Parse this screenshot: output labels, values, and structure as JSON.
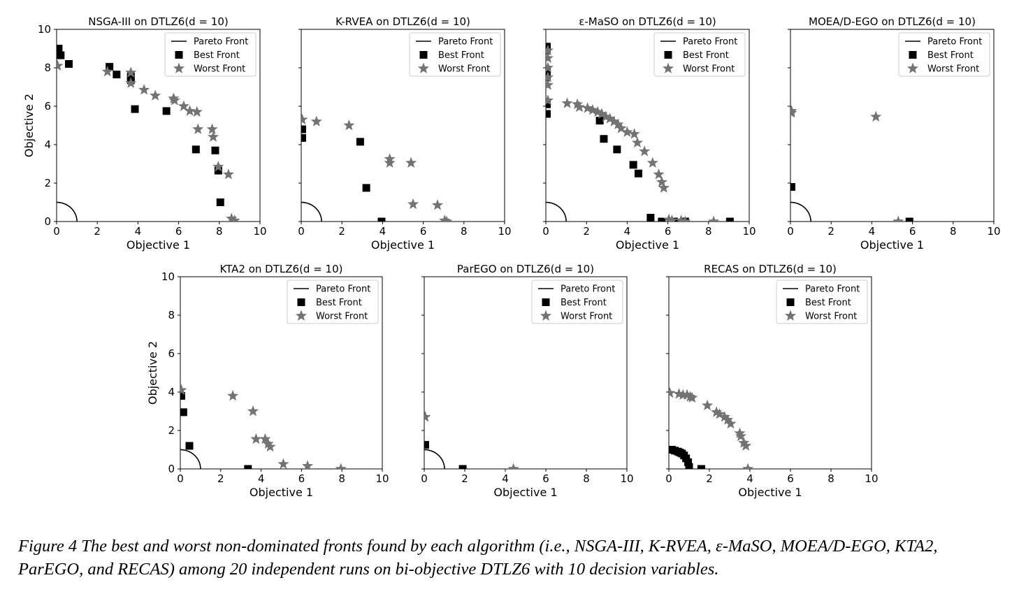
{
  "legend": {
    "pareto": "Pareto Front",
    "best": "Best Front",
    "worst": "Worst Front"
  },
  "colors": {
    "best": "#000000",
    "worst": "#737373",
    "pareto": "#000000"
  },
  "caption": "Figure 4 The best and worst non-dominated fronts found by each algorithm (i.e., NSGA-III, K-RVEA, ε-MaSO, MOEA/D-EGO, KTA2, ParEGO, and RECAS) among 20 independent runs on bi-objective DTLZ6 with 10 decision variables.",
  "chart_data": [
    {
      "type": "scatter",
      "title": "NSGA-III on DTLZ6(d = 10)",
      "xlabel": "Objective 1",
      "ylabel": "Objective 2",
      "xlim": [
        0,
        10
      ],
      "ylim": [
        0,
        10
      ],
      "xticks": [
        "0",
        "2",
        "4",
        "6",
        "8",
        "10"
      ],
      "yticks": [
        "0",
        "2",
        "4",
        "6",
        "8",
        "10"
      ],
      "legend_position": "upper right",
      "pareto_front": "quarter circle of radius 1 centered at origin",
      "series": [
        {
          "name": "Best Front",
          "marker": "square",
          "points": [
            [
              0.1,
              9.0
            ],
            [
              0.2,
              8.65
            ],
            [
              0.6,
              8.2
            ],
            [
              2.6,
              8.05
            ],
            [
              2.95,
              7.65
            ],
            [
              3.65,
              7.55
            ],
            [
              3.65,
              7.35
            ],
            [
              3.85,
              5.85
            ],
            [
              5.4,
              5.75
            ],
            [
              6.85,
              3.75
            ],
            [
              7.8,
              3.7
            ],
            [
              7.95,
              2.65
            ],
            [
              8.05,
              1.0
            ]
          ]
        },
        {
          "name": "Worst Front",
          "marker": "star",
          "points": [
            [
              0.05,
              8.1
            ],
            [
              2.5,
              7.8
            ],
            [
              3.65,
              7.75
            ],
            [
              3.65,
              7.2
            ],
            [
              4.3,
              6.85
            ],
            [
              4.85,
              6.55
            ],
            [
              5.75,
              6.4
            ],
            [
              5.8,
              6.3
            ],
            [
              6.25,
              6.0
            ],
            [
              6.55,
              5.75
            ],
            [
              6.9,
              5.7
            ],
            [
              6.95,
              4.8
            ],
            [
              7.65,
              4.8
            ],
            [
              7.7,
              4.4
            ],
            [
              7.95,
              2.85
            ],
            [
              8.45,
              2.45
            ],
            [
              8.6,
              0.15
            ],
            [
              8.75,
              0.05
            ]
          ]
        }
      ]
    },
    {
      "type": "scatter",
      "title": "K-RVEA on DTLZ6(d = 10)",
      "xlabel": "Objective 1",
      "ylabel": "",
      "xlim": [
        0,
        10
      ],
      "ylim": [
        0,
        10
      ],
      "xticks": [
        "0",
        "2",
        "4",
        "6",
        "8",
        "10"
      ],
      "yticks": [],
      "legend_position": "upper right",
      "pareto_front": "quarter circle of radius 1 centered at origin",
      "series": [
        {
          "name": "Best Front",
          "marker": "square",
          "points": [
            [
              0.05,
              4.8
            ],
            [
              0.05,
              4.35
            ],
            [
              2.9,
              4.15
            ],
            [
              3.2,
              1.75
            ],
            [
              3.95,
              0.0
            ]
          ]
        },
        {
          "name": "Worst Front",
          "marker": "star",
          "points": [
            [
              0.05,
              5.3
            ],
            [
              0.75,
              5.2
            ],
            [
              2.35,
              5.0
            ],
            [
              4.35,
              3.25
            ],
            [
              4.35,
              3.05
            ],
            [
              5.4,
              3.05
            ],
            [
              5.5,
              0.9
            ],
            [
              6.7,
              0.85
            ],
            [
              7.05,
              0.05
            ],
            [
              7.15,
              0.0
            ]
          ]
        }
      ]
    },
    {
      "type": "scatter",
      "title": "ε-MaSO on DTLZ6(d = 10)",
      "xlabel": "Objective 1",
      "ylabel": "",
      "xlim": [
        0,
        10
      ],
      "ylim": [
        0,
        10
      ],
      "xticks": [
        "0",
        "2",
        "4",
        "6",
        "8",
        "10"
      ],
      "yticks": [],
      "legend_position": "upper right",
      "pareto_front": "quarter circle of radius 1 centered at origin",
      "series": [
        {
          "name": "Best Front",
          "marker": "square",
          "points": [
            [
              0.05,
              9.1
            ],
            [
              0.05,
              8.9
            ],
            [
              0.05,
              7.9
            ],
            [
              0.05,
              7.5
            ],
            [
              0.05,
              6.1
            ],
            [
              0.05,
              5.6
            ],
            [
              2.65,
              5.25
            ],
            [
              2.85,
              4.3
            ],
            [
              3.5,
              3.75
            ],
            [
              4.3,
              2.95
            ],
            [
              4.55,
              2.5
            ],
            [
              5.15,
              0.2
            ],
            [
              5.7,
              0.0
            ],
            [
              6.3,
              0.0
            ],
            [
              6.85,
              0.0
            ],
            [
              9.05,
              0.0
            ]
          ]
        },
        {
          "name": "Worst Front",
          "marker": "star",
          "points": [
            [
              0.1,
              8.9
            ],
            [
              0.1,
              8.5
            ],
            [
              0.1,
              8.0
            ],
            [
              0.1,
              7.5
            ],
            [
              0.1,
              7.1
            ],
            [
              0.1,
              6.3
            ],
            [
              1.05,
              6.15
            ],
            [
              1.55,
              6.1
            ],
            [
              1.65,
              5.95
            ],
            [
              2.05,
              5.9
            ],
            [
              2.3,
              5.8
            ],
            [
              2.55,
              5.7
            ],
            [
              2.75,
              5.6
            ],
            [
              2.95,
              5.45
            ],
            [
              3.15,
              5.35
            ],
            [
              3.35,
              5.2
            ],
            [
              3.55,
              5.05
            ],
            [
              3.7,
              4.85
            ],
            [
              4.0,
              4.65
            ],
            [
              4.35,
              4.55
            ],
            [
              4.5,
              4.1
            ],
            [
              4.85,
              3.65
            ],
            [
              5.25,
              3.05
            ],
            [
              5.55,
              2.45
            ],
            [
              5.7,
              2.05
            ],
            [
              5.8,
              1.75
            ],
            [
              6.05,
              0.1
            ],
            [
              6.2,
              0.05
            ],
            [
              6.65,
              0.05
            ],
            [
              6.85,
              0.0
            ],
            [
              8.25,
              0.0
            ]
          ]
        }
      ]
    },
    {
      "type": "scatter",
      "title": "MOEA/D-EGO on DTLZ6(d = 10)",
      "xlabel": "Objective 1",
      "ylabel": "",
      "xlim": [
        0,
        10
      ],
      "ylim": [
        0,
        10
      ],
      "xticks": [
        "0",
        "2",
        "4",
        "6",
        "8",
        "10"
      ],
      "yticks": [],
      "legend_position": "upper right",
      "pareto_front": "quarter circle of radius 1 centered at origin",
      "series": [
        {
          "name": "Best Front",
          "marker": "square",
          "points": [
            [
              0.05,
              1.8
            ],
            [
              5.85,
              0.0
            ]
          ]
        },
        {
          "name": "Worst Front",
          "marker": "star",
          "points": [
            [
              0.05,
              5.75
            ],
            [
              0.05,
              5.65
            ],
            [
              4.2,
              5.45
            ],
            [
              5.3,
              0.0
            ]
          ]
        }
      ]
    },
    {
      "type": "scatter",
      "title": "KTA2 on DTLZ6(d = 10)",
      "xlabel": "Objective 1",
      "ylabel": "Objective 2",
      "xlim": [
        0,
        10
      ],
      "ylim": [
        0,
        10
      ],
      "xticks": [
        "0",
        "2",
        "4",
        "6",
        "8",
        "10"
      ],
      "yticks": [
        "0",
        "2",
        "4",
        "6",
        "8",
        "10"
      ],
      "legend_position": "upper right",
      "pareto_front": "quarter circle of radius 1 centered at origin",
      "series": [
        {
          "name": "Best Front",
          "marker": "square",
          "points": [
            [
              0.05,
              3.8
            ],
            [
              0.15,
              2.95
            ],
            [
              0.45,
              1.2
            ],
            [
              3.35,
              0.0
            ]
          ]
        },
        {
          "name": "Worst Front",
          "marker": "star",
          "points": [
            [
              0.05,
              4.1
            ],
            [
              2.6,
              3.8
            ],
            [
              3.6,
              3.0
            ],
            [
              3.75,
              1.55
            ],
            [
              4.2,
              1.55
            ],
            [
              4.35,
              1.3
            ],
            [
              4.45,
              1.15
            ],
            [
              5.1,
              0.25
            ],
            [
              6.3,
              0.15
            ],
            [
              7.95,
              0.0
            ]
          ]
        }
      ]
    },
    {
      "type": "scatter",
      "title": "ParEGO on DTLZ6(d = 10)",
      "xlabel": "Objective 1",
      "ylabel": "",
      "xlim": [
        0,
        10
      ],
      "ylim": [
        0,
        10
      ],
      "xticks": [
        "0",
        "2",
        "4",
        "6",
        "8",
        "10"
      ],
      "yticks": [],
      "legend_position": "upper right",
      "pareto_front": "quarter circle of radius 1 centered at origin",
      "series": [
        {
          "name": "Best Front",
          "marker": "square",
          "points": [
            [
              0.05,
              1.25
            ],
            [
              1.9,
              0.0
            ]
          ]
        },
        {
          "name": "Worst Front",
          "marker": "star",
          "points": [
            [
              0.05,
              2.7
            ],
            [
              4.4,
              0.0
            ]
          ]
        }
      ]
    },
    {
      "type": "scatter",
      "title": "RECAS on DTLZ6(d = 10)",
      "xlabel": "Objective 1",
      "ylabel": "",
      "xlim": [
        0,
        10
      ],
      "ylim": [
        0,
        10
      ],
      "xticks": [
        "0",
        "2",
        "4",
        "6",
        "8",
        "10"
      ],
      "yticks": [],
      "legend_position": "upper right",
      "pareto_front": "quarter circle of radius 1 centered at origin",
      "series": [
        {
          "name": "Best Front",
          "marker": "square",
          "points": [
            [
              0.05,
              1.0
            ],
            [
              0.15,
              1.0
            ],
            [
              0.3,
              0.95
            ],
            [
              0.45,
              0.9
            ],
            [
              0.55,
              0.85
            ],
            [
              0.65,
              0.8
            ],
            [
              0.75,
              0.7
            ],
            [
              0.85,
              0.55
            ],
            [
              0.95,
              0.35
            ],
            [
              1.0,
              0.1
            ],
            [
              1.6,
              0.0
            ]
          ]
        },
        {
          "name": "Worst Front",
          "marker": "star",
          "points": [
            [
              0.05,
              3.95
            ],
            [
              0.5,
              3.9
            ],
            [
              0.7,
              3.85
            ],
            [
              0.9,
              3.85
            ],
            [
              1.05,
              3.75
            ],
            [
              1.15,
              3.7
            ],
            [
              1.9,
              3.3
            ],
            [
              2.35,
              2.95
            ],
            [
              2.5,
              2.85
            ],
            [
              2.75,
              2.7
            ],
            [
              2.9,
              2.55
            ],
            [
              3.05,
              2.35
            ],
            [
              3.5,
              1.85
            ],
            [
              3.55,
              1.7
            ],
            [
              3.7,
              1.35
            ],
            [
              3.8,
              1.2
            ],
            [
              3.9,
              0.0
            ]
          ]
        }
      ]
    }
  ]
}
